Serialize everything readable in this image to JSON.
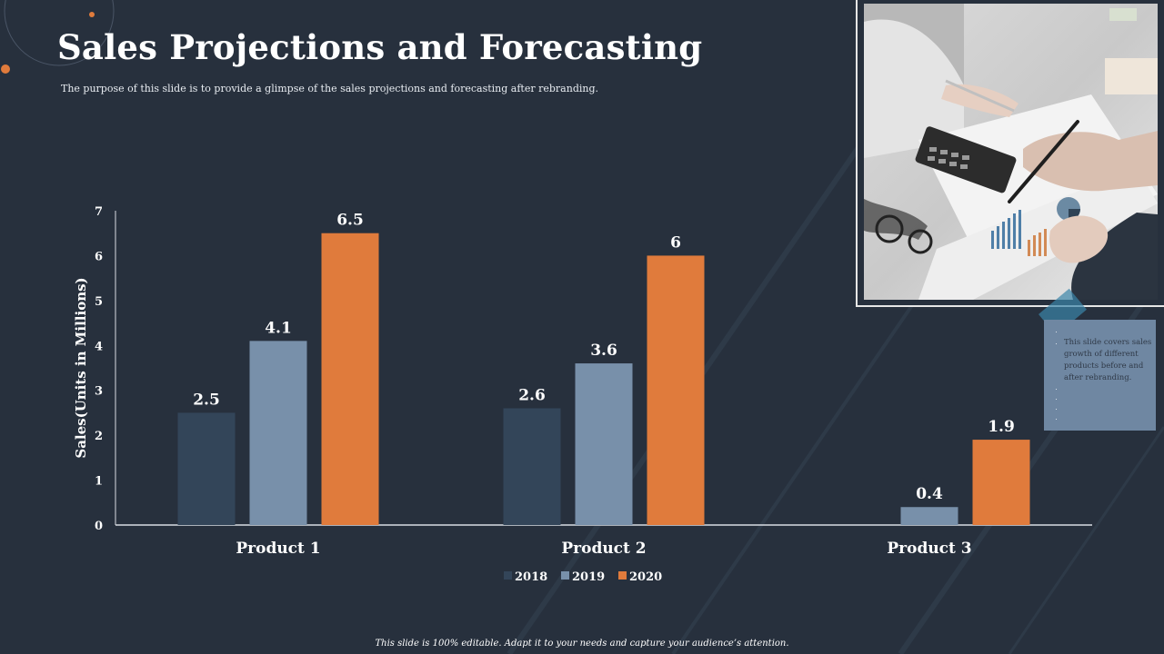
{
  "slide": {
    "title": "Sales Projections and Forecasting",
    "subtitle": "The purpose of this slide is to provide a glimpse of the sales projections and forecasting after rebranding.",
    "footer": "This slide is 100% editable. Adapt it to your needs and capture your audience’s attention."
  },
  "note": {
    "items": [
      "",
      "This slide covers sales growth of different products before and after rebranding.",
      "",
      "",
      "",
      ""
    ]
  },
  "colors": {
    "background": "#27303d",
    "accent": "#e07b3c"
  },
  "chart_data": {
    "type": "bar",
    "title": "",
    "xlabel": "",
    "ylabel": "Sales(Units in Millions)",
    "ylim": [
      0,
      7
    ],
    "yticks": [
      0,
      1,
      2,
      3,
      4,
      5,
      6,
      7
    ],
    "grid": false,
    "legend": "bottom",
    "categories": [
      "Product 1",
      "Product 2",
      "Product 3"
    ],
    "series": [
      {
        "name": "2018",
        "color": "#334559",
        "values": [
          2.5,
          2.6,
          null
        ]
      },
      {
        "name": "2019",
        "color": "#7890aa",
        "values": [
          4.1,
          3.6,
          0.4
        ]
      },
      {
        "name": "2020",
        "color": "#e07b3c",
        "values": [
          6.5,
          6,
          1.9
        ]
      }
    ]
  }
}
